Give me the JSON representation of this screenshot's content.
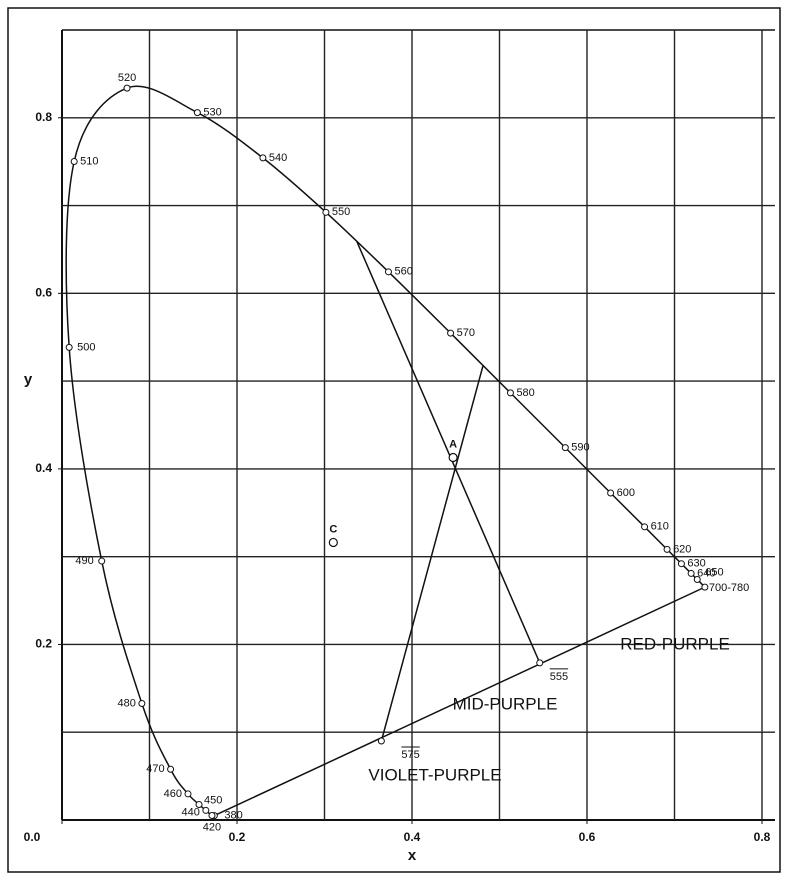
{
  "chart_data": {
    "type": "line",
    "xlabel": "x",
    "ylabel": "y",
    "xlim": [
      0,
      0.8
    ],
    "ylim": [
      0,
      0.9
    ],
    "xticks": [
      {
        "value": 0,
        "label": "0.0"
      },
      0.2,
      0.4,
      0.6,
      0.8
    ],
    "yticks": [
      0.2,
      0.4,
      0.6,
      0.8
    ],
    "xgrid": [
      0.1,
      0.2,
      0.3,
      0.4,
      0.5,
      0.6,
      0.7,
      0.8
    ],
    "ygrid": [
      0.1,
      0.2,
      0.3,
      0.4,
      0.5,
      0.6,
      0.7,
      0.8
    ],
    "grid": true,
    "spectral_locus": {
      "labels": [
        "380",
        "420",
        "440",
        "450",
        "460",
        "470",
        "480",
        "490",
        "500",
        "510",
        "520",
        "530",
        "540",
        "550",
        "560",
        "570",
        "580",
        "590",
        "600",
        "610",
        "620",
        "630",
        "640",
        "650",
        "700-780"
      ],
      "x": [
        0.1741,
        0.1714,
        0.1644,
        0.1566,
        0.144,
        0.1241,
        0.0913,
        0.0454,
        0.0082,
        0.0139,
        0.0743,
        0.1547,
        0.2296,
        0.3016,
        0.3731,
        0.4441,
        0.5125,
        0.5752,
        0.627,
        0.6658,
        0.6915,
        0.7079,
        0.719,
        0.726,
        0.7347
      ],
      "y": [
        0.005,
        0.0051,
        0.0109,
        0.0177,
        0.0297,
        0.0578,
        0.1327,
        0.295,
        0.5384,
        0.7502,
        0.8338,
        0.8059,
        0.7543,
        0.6923,
        0.6245,
        0.5547,
        0.4866,
        0.4242,
        0.3725,
        0.334,
        0.3083,
        0.292,
        0.2809,
        0.274,
        0.2653
      ]
    },
    "points": [
      {
        "label": "C",
        "x": 0.3101,
        "y": 0.3162
      },
      {
        "label": "A",
        "x": 0.447,
        "y": 0.413
      }
    ],
    "lines": [
      {
        "label": "555",
        "x": [
          0.337,
          0.546
        ],
        "y": [
          0.659,
          0.179
        ]
      },
      {
        "label": "575",
        "x": [
          0.481,
          0.365
        ],
        "y": [
          0.517,
          0.09
        ]
      }
    ],
    "annotations": [
      "RED-PURPLE",
      "MID-PURPLE",
      "VIOLET-PURPLE"
    ]
  }
}
